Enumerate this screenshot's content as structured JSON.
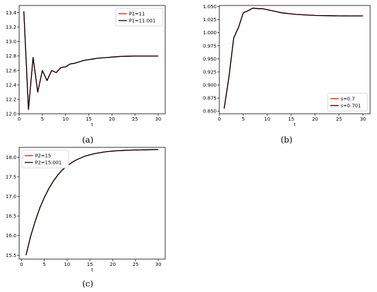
{
  "chart_data": [
    {
      "type": "line",
      "caption": "(a)",
      "xlabel": "t",
      "ylabel": "",
      "xlim": [
        0,
        31.5
      ],
      "ylim": [
        12.0,
        13.5
      ],
      "xticks": [
        0,
        5,
        10,
        15,
        20,
        25,
        30
      ],
      "yticks": [
        12.0,
        12.2,
        12.4,
        12.6,
        12.8,
        13.0,
        13.2,
        13.4
      ],
      "ytick_decimals": 1,
      "legend_position": "top-right",
      "series": [
        {
          "name": "P1=11",
          "color": "#ff0000",
          "x": [
            1,
            2,
            3,
            4,
            5,
            6,
            7,
            8,
            9,
            10,
            11,
            12,
            13,
            14,
            15,
            16,
            17,
            18,
            19,
            20,
            21,
            22,
            23,
            24,
            25,
            26,
            27,
            28,
            29,
            30
          ],
          "y": [
            13.42,
            12.06,
            12.78,
            12.3,
            12.6,
            12.46,
            12.6,
            12.57,
            12.64,
            12.65,
            12.69,
            12.7,
            12.72,
            12.74,
            12.75,
            12.76,
            12.77,
            12.775,
            12.78,
            12.785,
            12.79,
            12.795,
            12.797,
            12.798,
            12.8,
            12.8,
            12.8,
            12.8,
            12.8,
            12.8
          ]
        },
        {
          "name": "P1=11.001",
          "color": "#000000",
          "x": [
            1,
            2,
            3,
            4,
            5,
            6,
            7,
            8,
            9,
            10,
            11,
            12,
            13,
            14,
            15,
            16,
            17,
            18,
            19,
            20,
            21,
            22,
            23,
            24,
            25,
            26,
            27,
            28,
            29,
            30
          ],
          "y": [
            13.42,
            12.06,
            12.78,
            12.3,
            12.6,
            12.46,
            12.6,
            12.57,
            12.64,
            12.65,
            12.69,
            12.7,
            12.72,
            12.74,
            12.75,
            12.76,
            12.77,
            12.775,
            12.78,
            12.785,
            12.79,
            12.795,
            12.797,
            12.798,
            12.8,
            12.8,
            12.8,
            12.8,
            12.8,
            12.8
          ]
        }
      ]
    },
    {
      "type": "line",
      "caption": "(b)",
      "xlabel": "t",
      "ylabel": "",
      "xlim": [
        0,
        31.5
      ],
      "ylim": [
        0.845,
        1.052
      ],
      "xticks": [
        0,
        5,
        10,
        15,
        20,
        25,
        30
      ],
      "yticks": [
        0.85,
        0.875,
        0.9,
        0.925,
        0.95,
        0.975,
        1.0,
        1.025,
        1.05
      ],
      "ytick_decimals": 3,
      "legend_position": "bottom-right",
      "series": [
        {
          "name": "s=0.7",
          "color": "#ff0000",
          "x": [
            1,
            2,
            3,
            4,
            5,
            6,
            7,
            8,
            9,
            10,
            11,
            12,
            13,
            14,
            15,
            16,
            17,
            18,
            19,
            20,
            21,
            22,
            23,
            24,
            25,
            26,
            27,
            28,
            29,
            30
          ],
          "y": [
            0.855,
            0.915,
            0.99,
            1.01,
            1.038,
            1.042,
            1.047,
            1.046,
            1.046,
            1.044,
            1.042,
            1.04,
            1.038,
            1.037,
            1.036,
            1.035,
            1.0345,
            1.034,
            1.0335,
            1.033,
            1.0328,
            1.0326,
            1.0324,
            1.0323,
            1.0322,
            1.0321,
            1.032,
            1.032,
            1.032,
            1.032
          ]
        },
        {
          "name": "s=0.701",
          "color": "#000000",
          "x": [
            1,
            2,
            3,
            4,
            5,
            6,
            7,
            8,
            9,
            10,
            11,
            12,
            13,
            14,
            15,
            16,
            17,
            18,
            19,
            20,
            21,
            22,
            23,
            24,
            25,
            26,
            27,
            28,
            29,
            30
          ],
          "y": [
            0.855,
            0.915,
            0.99,
            1.01,
            1.038,
            1.042,
            1.047,
            1.046,
            1.046,
            1.044,
            1.042,
            1.04,
            1.038,
            1.037,
            1.036,
            1.035,
            1.0345,
            1.034,
            1.0335,
            1.033,
            1.0328,
            1.0326,
            1.0324,
            1.0323,
            1.0322,
            1.0321,
            1.032,
            1.032,
            1.032,
            1.032
          ]
        }
      ]
    },
    {
      "type": "line",
      "caption": "(c)",
      "xlabel": "t",
      "ylabel": "",
      "xlim": [
        -0.5,
        31.5
      ],
      "ylim": [
        15.4,
        18.25
      ],
      "xticks": [
        0,
        5,
        10,
        15,
        20,
        25,
        30
      ],
      "yticks": [
        15.5,
        16.0,
        16.5,
        17.0,
        17.5,
        18.0
      ],
      "ytick_decimals": 1,
      "legend_position": "top-left",
      "series": [
        {
          "name": "P2=15",
          "color": "#ff0000",
          "x": [
            1,
            2,
            3,
            4,
            5,
            6,
            7,
            8,
            9,
            10,
            11,
            12,
            13,
            14,
            15,
            16,
            17,
            18,
            19,
            20,
            21,
            22,
            23,
            24,
            25,
            26,
            27,
            28,
            29,
            30
          ],
          "y": [
            15.5,
            15.98,
            16.36,
            16.7,
            16.97,
            17.2,
            17.39,
            17.55,
            17.68,
            17.78,
            17.86,
            17.93,
            17.98,
            18.03,
            18.06,
            18.09,
            18.11,
            18.13,
            18.145,
            18.155,
            18.165,
            18.17,
            18.175,
            18.18,
            18.183,
            18.186,
            18.188,
            18.19,
            18.192,
            18.193
          ]
        },
        {
          "name": "P2=15.001",
          "color": "#000000",
          "x": [
            1,
            2,
            3,
            4,
            5,
            6,
            7,
            8,
            9,
            10,
            11,
            12,
            13,
            14,
            15,
            16,
            17,
            18,
            19,
            20,
            21,
            22,
            23,
            24,
            25,
            26,
            27,
            28,
            29,
            30
          ],
          "y": [
            15.5,
            15.98,
            16.36,
            16.7,
            16.97,
            17.2,
            17.39,
            17.55,
            17.68,
            17.78,
            17.86,
            17.93,
            17.98,
            18.03,
            18.06,
            18.09,
            18.11,
            18.13,
            18.145,
            18.155,
            18.165,
            18.17,
            18.175,
            18.18,
            18.183,
            18.186,
            18.188,
            18.19,
            18.192,
            18.193
          ]
        }
      ]
    }
  ]
}
